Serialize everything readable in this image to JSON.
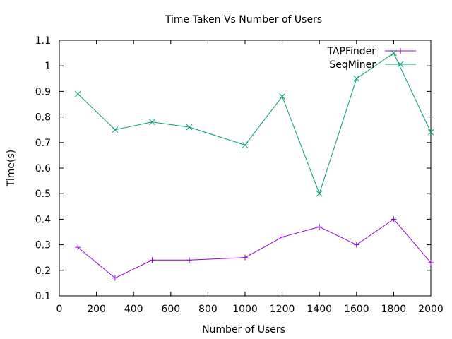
{
  "chart_data": {
    "type": "line",
    "title": "Time Taken Vs Number of Users",
    "xlabel": "Number of Users",
    "ylabel": "Time(s)",
    "xlim": [
      0,
      2000
    ],
    "ylim": [
      0.1,
      1.1
    ],
    "xticks": [
      0,
      200,
      400,
      600,
      800,
      1000,
      1200,
      1400,
      1600,
      1800,
      2000
    ],
    "yticks": [
      0.1,
      0.2,
      0.3,
      0.4,
      0.5,
      0.6,
      0.7,
      0.8,
      0.9,
      1,
      1.1
    ],
    "xtick_labels": [
      "0",
      "200",
      "400",
      "600",
      "800",
      "1000",
      "1200",
      "1400",
      "1600",
      "1800",
      "2000"
    ],
    "ytick_labels": [
      "0.1",
      "0.2",
      "0.3",
      "0.4",
      "0.5",
      "0.6",
      "0.7",
      "0.8",
      "0.9",
      "1",
      "1.1"
    ],
    "grid": false,
    "legend_position": "top-right",
    "x": [
      100,
      300,
      500,
      700,
      1000,
      1200,
      1400,
      1600,
      1800,
      2000
    ],
    "series": [
      {
        "name": "TAPFinder",
        "color": "#9400d3",
        "marker": "plus",
        "values": [
          0.29,
          0.17,
          0.24,
          0.24,
          0.25,
          0.33,
          0.37,
          0.3,
          0.4,
          0.23
        ]
      },
      {
        "name": "SeqMiner",
        "color": "#009e73",
        "marker": "cross",
        "values": [
          0.89,
          0.75,
          0.78,
          0.76,
          0.69,
          0.88,
          0.5,
          0.95,
          1.05,
          0.74
        ]
      }
    ]
  }
}
